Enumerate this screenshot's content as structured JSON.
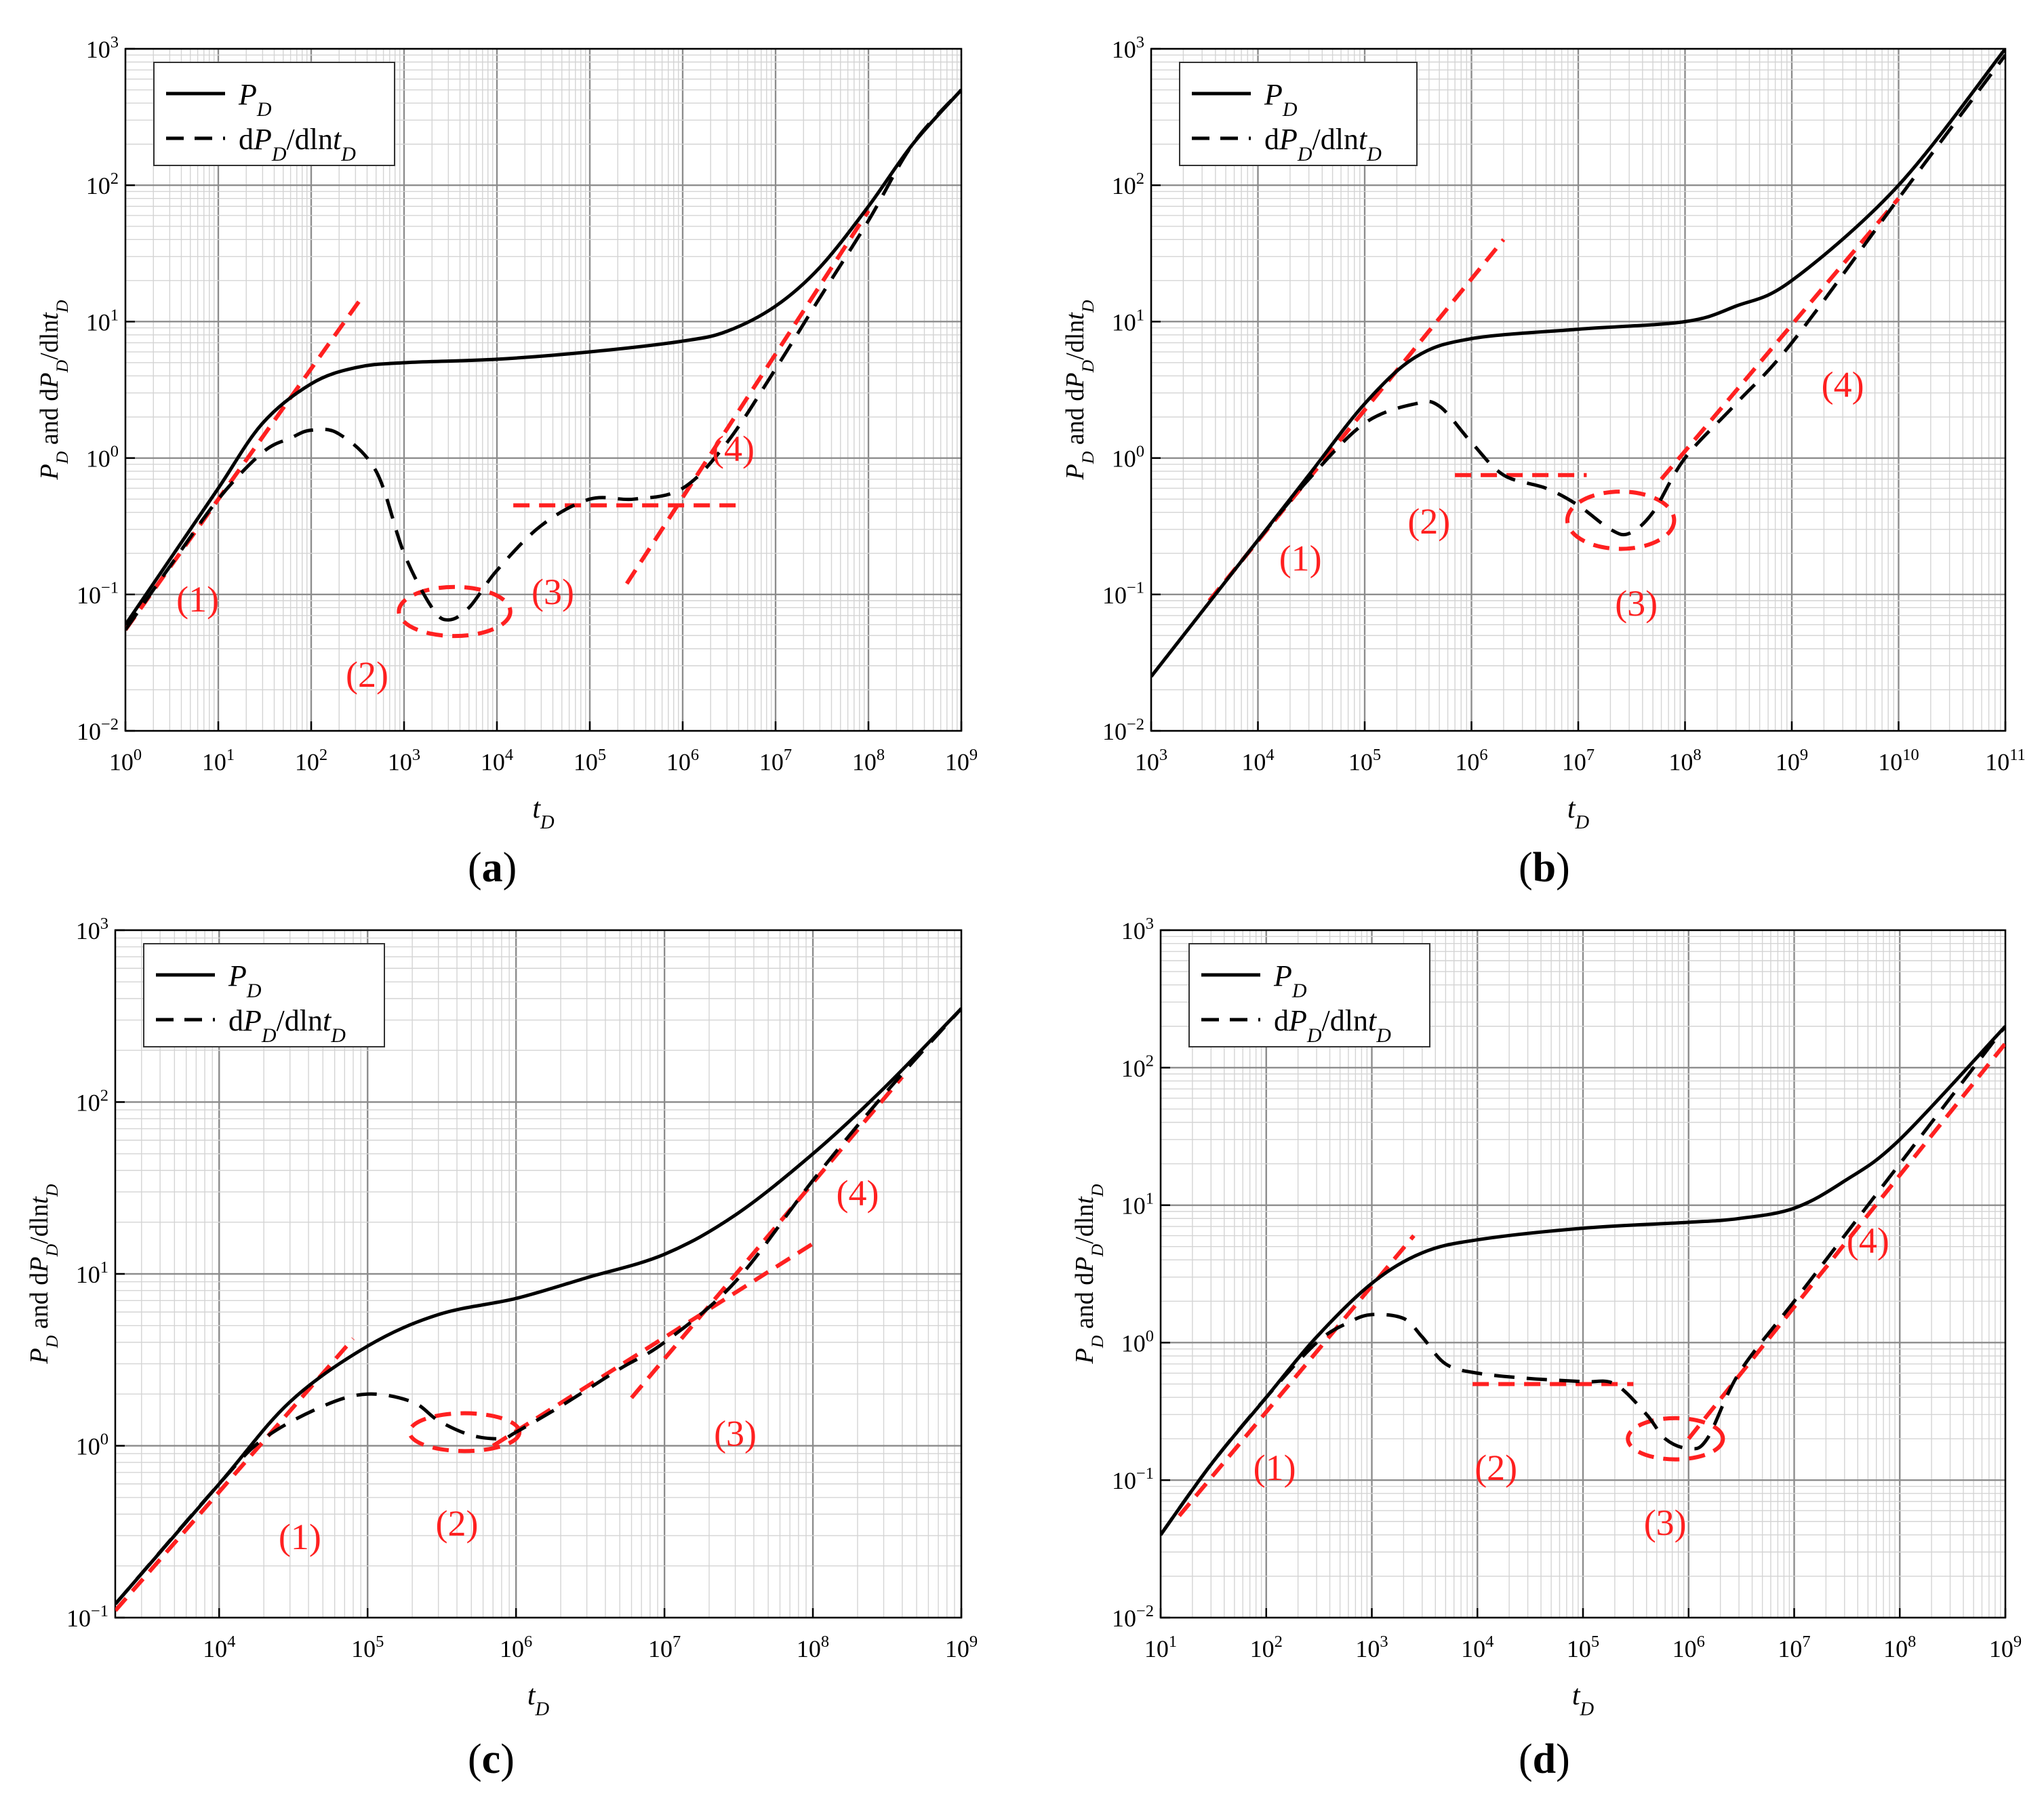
{
  "figure": {
    "captions": [
      "(a)",
      "(b)",
      "(c)",
      "(d)"
    ],
    "legend": {
      "pd": "P_D",
      "dpd": "dP_D/dlnt_D"
    }
  },
  "colors": {
    "curve": "#000000",
    "fit": "#ff2020",
    "grid_major": "#8c8c8c",
    "grid_minor": "#d4d4d4"
  },
  "chart_data": [
    {
      "type": "line",
      "id": "a",
      "xlabel": "t_D",
      "ylabel": "P_D and dP_D/dlnt_D",
      "xlog": [
        0,
        9
      ],
      "ylog": [
        -2,
        3
      ],
      "series": [
        {
          "name": "P_D",
          "style": "solid",
          "x": [
            1,
            3,
            10,
            30,
            100,
            300,
            1000,
            10000,
            100000,
            1000000,
            3000000,
            10000000,
            30000000,
            100000000,
            300000000,
            1000000000
          ],
          "y": [
            0.06,
            0.18,
            0.6,
            1.8,
            3.5,
            4.6,
            5.0,
            5.3,
            6.0,
            7.2,
            8.5,
            13,
            25,
            70,
            200,
            500
          ]
        },
        {
          "name": "dP_D/dlnt_D",
          "style": "dashed",
          "x": [
            1,
            3,
            10,
            30,
            60,
            100,
            200,
            500,
            1000,
            2000,
            3000,
            5000,
            10000,
            30000,
            100000,
            300000,
            1000000,
            3000000,
            10000000,
            30000000,
            100000000,
            300000000,
            1000000000
          ],
          "y": [
            0.055,
            0.16,
            0.5,
            1.1,
            1.4,
            1.6,
            1.5,
            0.8,
            0.2,
            0.08,
            0.065,
            0.08,
            0.15,
            0.32,
            0.5,
            0.5,
            0.6,
            1.3,
            4.5,
            15,
            55,
            200,
            500
          ]
        }
      ],
      "fit_lines": [
        {
          "x": [
            1,
            350
          ],
          "y": [
            0.055,
            15
          ]
        },
        {
          "x": [
            15000,
            4000000
          ],
          "y": [
            0.45,
            0.45
          ]
        },
        {
          "x": [
            250000,
            100000000
          ],
          "y": [
            0.12,
            65
          ]
        }
      ],
      "ellipses": [
        {
          "cx": 3500,
          "cy": 0.075,
          "rx_decades": 0.6,
          "ry_decades": 0.18
        }
      ],
      "annotations": [
        {
          "text": "(1)",
          "x": 6,
          "y": 0.075
        },
        {
          "text": "(2)",
          "x": 400,
          "y": 0.021
        },
        {
          "text": "(3)",
          "x": 40000,
          "y": 0.085
        },
        {
          "text": "(4)",
          "x": 3500000,
          "y": 0.95
        }
      ],
      "legend": "top-left"
    },
    {
      "type": "line",
      "id": "b",
      "xlabel": "t_D",
      "ylabel": "P_D and dP_D/dlnt_D",
      "xlog": [
        3,
        11
      ],
      "ylog": [
        -2,
        3
      ],
      "series": [
        {
          "name": "P_D",
          "style": "solid",
          "x": [
            1000,
            10000,
            30000,
            100000,
            300000,
            1000000,
            10000000,
            100000000,
            300000000,
            1000000000,
            10000000000,
            100000000000
          ],
          "y": [
            0.025,
            0.25,
            0.75,
            2.5,
            5.5,
            7.5,
            8.8,
            10,
            13,
            20,
            100,
            1000
          ]
        },
        {
          "name": "dP_D/dlnt_D",
          "style": "dashed",
          "x": [
            10000,
            30000,
            100000,
            300000,
            500000,
            1000000,
            2000000,
            5000000,
            10000000,
            20000000,
            30000000,
            50000000,
            100000000,
            300000000,
            1000000000,
            10000000000,
            100000000000
          ],
          "y": [
            0.25,
            0.7,
            1.8,
            2.5,
            2.4,
            1.3,
            0.75,
            0.6,
            0.45,
            0.3,
            0.28,
            0.4,
            1.0,
            2.5,
            7,
            80,
            900
          ]
        }
      ],
      "fit_lines": [
        {
          "x": [
            3500,
            2000000
          ],
          "y": [
            0.09,
            40
          ]
        },
        {
          "x": [
            700000,
            12000000
          ],
          "y": [
            0.75,
            0.75
          ]
        },
        {
          "x": [
            60000000,
            10000000000
          ],
          "y": [
            0.7,
            80
          ]
        }
      ],
      "ellipses": [
        {
          "cx": 25000000,
          "cy": 0.35,
          "rx_decades": 0.5,
          "ry_decades": 0.21
        }
      ],
      "annotations": [
        {
          "text": "(1)",
          "x": 25000,
          "y": 0.15
        },
        {
          "text": "(2)",
          "x": 400000,
          "y": 0.28
        },
        {
          "text": "(3)",
          "x": 35000000,
          "y": 0.07
        },
        {
          "text": "(4)",
          "x": 3000000000,
          "y": 2.8
        }
      ],
      "legend": "top-left"
    },
    {
      "type": "line",
      "id": "c",
      "xlabel": "t_D",
      "ylabel": "P_D and dP_D/dlnt_D",
      "xlog": [
        3.3,
        9
      ],
      "ylog": [
        -1,
        3
      ],
      "xticks": [
        4,
        5,
        6,
        7,
        8,
        9
      ],
      "series": [
        {
          "name": "P_D",
          "style": "solid",
          "x": [
            2000,
            10000,
            30000,
            100000,
            300000,
            1000000,
            3000000,
            10000000,
            30000000,
            100000000,
            300000000,
            1000000000
          ],
          "y": [
            0.12,
            0.6,
            1.8,
            3.8,
            5.8,
            7.2,
            9.5,
            13,
            22,
            50,
            120,
            350
          ]
        },
        {
          "name": "dP_D/dlnt_D",
          "style": "dashed",
          "x": [
            2000,
            10000,
            20000,
            50000,
            100000,
            200000,
            300000,
            500000,
            800000,
            1000000,
            2000000,
            5000000,
            10000000,
            30000000,
            100000000,
            300000000,
            1000000000
          ],
          "y": [
            0.12,
            0.6,
            1.1,
            1.7,
            2.0,
            1.8,
            1.4,
            1.15,
            1.1,
            1.2,
            1.7,
            2.8,
            4.0,
            9.0,
            35,
            110,
            350
          ]
        }
      ],
      "fit_lines": [
        {
          "x": [
            2000,
            80000
          ],
          "y": [
            0.11,
            4.2
          ]
        },
        {
          "x": [
            700000,
            100000000
          ],
          "y": [
            1.0,
            15
          ]
        },
        {
          "x": [
            6000000,
            400000000
          ],
          "y": [
            1.9,
            140
          ]
        }
      ],
      "ellipses": [
        {
          "cx": 450000,
          "cy": 1.2,
          "rx_decades": 0.37,
          "ry_decades": 0.11
        }
      ],
      "annotations": [
        {
          "text": "(1)",
          "x": 35000,
          "y": 0.25
        },
        {
          "text": "(2)",
          "x": 400000,
          "y": 0.3
        },
        {
          "text": "(3)",
          "x": 30000000,
          "y": 1.0
        },
        {
          "text": "(4)",
          "x": 200000000,
          "y": 25
        }
      ],
      "legend": "top-left"
    },
    {
      "type": "line",
      "id": "d",
      "xlabel": "t_D",
      "ylabel": "P_D and dP_D/dlnt_D",
      "xlog": [
        1,
        9
      ],
      "ylog": [
        -2,
        3
      ],
      "series": [
        {
          "name": "P_D",
          "style": "solid",
          "x": [
            10,
            30,
            100,
            300,
            1000,
            3000,
            10000,
            100000,
            1000000,
            3000000,
            10000000,
            30000000,
            100000000,
            1000000000
          ],
          "y": [
            0.04,
            0.13,
            0.4,
            1.1,
            2.7,
            4.5,
            5.6,
            6.8,
            7.5,
            8.0,
            9.5,
            15,
            30,
            200
          ]
        },
        {
          "name": "dP_D/dlnt_D",
          "style": "dashed",
          "x": [
            10,
            30,
            100,
            300,
            600,
            1000,
            2000,
            3000,
            5000,
            10000,
            30000,
            100000,
            200000,
            400000,
            600000,
            1000000,
            1500000,
            3000000,
            10000000,
            30000000,
            100000000,
            1000000000
          ],
          "y": [
            0.04,
            0.13,
            0.4,
            1.0,
            1.4,
            1.6,
            1.5,
            1.1,
            0.7,
            0.6,
            0.55,
            0.52,
            0.5,
            0.3,
            0.2,
            0.17,
            0.2,
            0.6,
            2.0,
            6.0,
            20,
            200
          ]
        }
      ],
      "fit_lines": [
        {
          "x": [
            15,
            2500
          ],
          "y": [
            0.055,
            6
          ]
        },
        {
          "x": [
            9000,
            300000
          ],
          "y": [
            0.5,
            0.5
          ]
        },
        {
          "x": [
            1000000,
            1000000000
          ],
          "y": [
            0.2,
            150
          ]
        }
      ],
      "ellipses": [
        {
          "cx": 750000,
          "cy": 0.2,
          "rx_decades": 0.45,
          "ry_decades": 0.15
        }
      ],
      "annotations": [
        {
          "text": "(1)",
          "x": 120,
          "y": 0.1
        },
        {
          "text": "(2)",
          "x": 15000,
          "y": 0.1
        },
        {
          "text": "(3)",
          "x": 600000,
          "y": 0.04
        },
        {
          "text": "(4)",
          "x": 50000000,
          "y": 4.5
        }
      ],
      "legend": "top-left"
    }
  ]
}
